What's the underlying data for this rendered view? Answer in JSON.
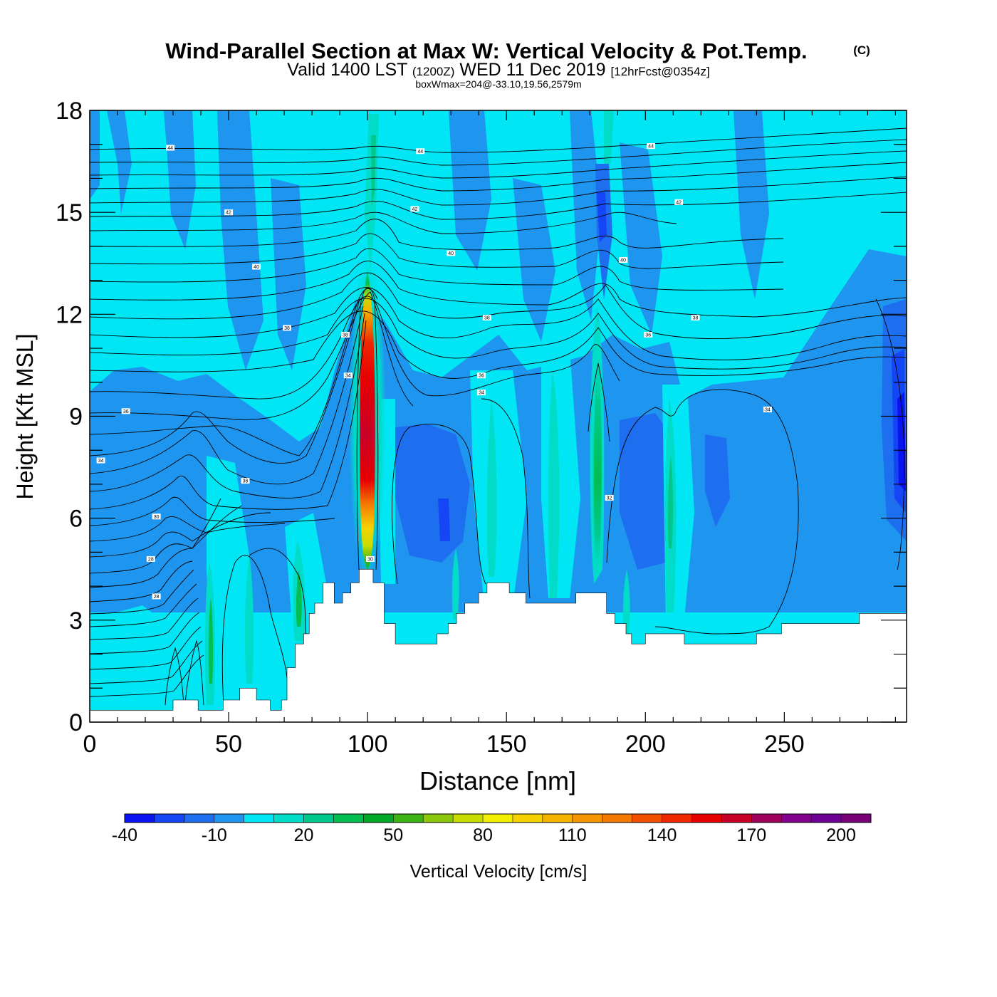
{
  "title": {
    "main": "Wind-Parallel Section at Max W: Vertical Velocity & Pot.Temp.",
    "copyright": "(C)",
    "valid_prefix": "Valid 1400 LST",
    "valid_utc": "(1200Z)",
    "valid_date": "WED 11 Dec 2019",
    "forecast": "[12hrFcst@0354z]",
    "boxwmax": "boxWmax=204@-33.10,19.56,2579m"
  },
  "chart_data": {
    "type": "heatmap",
    "xlabel": "Distance [nm]",
    "ylabel": "Height [Kft MSL]",
    "xlim": [
      0,
      294
    ],
    "ylim": [
      0,
      18
    ],
    "x_ticks": [
      "0",
      "50",
      "100",
      "150",
      "200",
      "250"
    ],
    "x_tick_values": [
      0,
      50,
      100,
      150,
      200,
      250
    ],
    "y_ticks": [
      "0",
      "3",
      "6",
      "9",
      "12",
      "15",
      "18"
    ],
    "y_tick_values": [
      0,
      3,
      6,
      9,
      12,
      15,
      18
    ],
    "colorbar": {
      "label": "Vertical Velocity [cm/s]",
      "min": -40,
      "max": 210,
      "step": 10,
      "tick_labels": [
        "-40",
        "-10",
        "20",
        "50",
        "80",
        "110",
        "140",
        "170",
        "200"
      ],
      "tick_values": [
        -40,
        -10,
        20,
        50,
        80,
        110,
        140,
        170,
        200
      ],
      "colors": [
        "#0a14f0",
        "#1446f5",
        "#1e6ef0",
        "#1e96f0",
        "#00e6f5",
        "#00dcc8",
        "#00c88c",
        "#00be50",
        "#00aa28",
        "#3cb414",
        "#8cc80a",
        "#c8dc00",
        "#f0f000",
        "#f5d200",
        "#f5b400",
        "#f59600",
        "#f57800",
        "#f55000",
        "#f02800",
        "#e60000",
        "#c80028",
        "#a0005a",
        "#82008c",
        "#6e0096",
        "#780078"
      ]
    },
    "terrain_profile_kft": [
      [
        0,
        0.35
      ],
      [
        24,
        0.35
      ],
      [
        24,
        0.35
      ],
      [
        30,
        0.35
      ],
      [
        30,
        0.65
      ],
      [
        39,
        0.65
      ],
      [
        39,
        0.35
      ],
      [
        48,
        0.35
      ],
      [
        48,
        0.65
      ],
      [
        54,
        0.65
      ],
      [
        54,
        1.0
      ],
      [
        60,
        1.0
      ],
      [
        60,
        0.65
      ],
      [
        65,
        0.65
      ],
      [
        65,
        0.35
      ],
      [
        69,
        0.35
      ],
      [
        69,
        0.65
      ],
      [
        71,
        0.65
      ],
      [
        71,
        1.6
      ],
      [
        74,
        1.6
      ],
      [
        74,
        2.3
      ],
      [
        77,
        2.3
      ],
      [
        77,
        2.6
      ],
      [
        79,
        2.6
      ],
      [
        79,
        3.2
      ],
      [
        81,
        3.2
      ],
      [
        81,
        3.5
      ],
      [
        84,
        3.5
      ],
      [
        84,
        4.1
      ],
      [
        88,
        4.1
      ],
      [
        88,
        3.5
      ],
      [
        91,
        3.5
      ],
      [
        91,
        3.8
      ],
      [
        94,
        3.8
      ],
      [
        94,
        4.1
      ],
      [
        97,
        4.1
      ],
      [
        97,
        4.5
      ],
      [
        102,
        4.5
      ],
      [
        102,
        4.1
      ],
      [
        106,
        4.1
      ],
      [
        106,
        2.9
      ],
      [
        110,
        2.9
      ],
      [
        110,
        2.3
      ],
      [
        125,
        2.3
      ],
      [
        125,
        2.6
      ],
      [
        129,
        2.6
      ],
      [
        129,
        2.9
      ],
      [
        132,
        2.9
      ],
      [
        132,
        3.2
      ],
      [
        135,
        3.2
      ],
      [
        135,
        3.5
      ],
      [
        140,
        3.5
      ],
      [
        140,
        3.8
      ],
      [
        143,
        3.8
      ],
      [
        143,
        4.1
      ],
      [
        151,
        4.1
      ],
      [
        151,
        3.8
      ],
      [
        157,
        3.8
      ],
      [
        157,
        3.5
      ],
      [
        175,
        3.5
      ],
      [
        175,
        3.8
      ],
      [
        186,
        3.8
      ],
      [
        186,
        3.2
      ],
      [
        189,
        3.2
      ],
      [
        189,
        2.9
      ],
      [
        193,
        2.9
      ],
      [
        193,
        2.6
      ],
      [
        195,
        2.6
      ],
      [
        195,
        2.3
      ],
      [
        200,
        2.3
      ],
      [
        200,
        2.6
      ],
      [
        214,
        2.6
      ],
      [
        214,
        2.3
      ],
      [
        240,
        2.3
      ],
      [
        240,
        2.6
      ],
      [
        249,
        2.6
      ],
      [
        249,
        2.9
      ],
      [
        277,
        2.9
      ],
      [
        277,
        3.2
      ],
      [
        294,
        3.2
      ]
    ],
    "theta_contour_labels": [
      {
        "text": "44",
        "x": 29,
        "y": 16.9
      },
      {
        "text": "44",
        "x": 119,
        "y": 16.8
      },
      {
        "text": "44",
        "x": 202,
        "y": 16.95
      },
      {
        "text": "42",
        "x": 50,
        "y": 15.0
      },
      {
        "text": "42",
        "x": 117,
        "y": 15.1
      },
      {
        "text": "42",
        "x": 212,
        "y": 15.3
      },
      {
        "text": "40",
        "x": 60,
        "y": 13.4
      },
      {
        "text": "40",
        "x": 130,
        "y": 13.8
      },
      {
        "text": "40",
        "x": 192,
        "y": 13.6
      },
      {
        "text": "38",
        "x": 71,
        "y": 11.6
      },
      {
        "text": "38",
        "x": 92,
        "y": 11.4
      },
      {
        "text": "38",
        "x": 143,
        "y": 11.9
      },
      {
        "text": "38",
        "x": 218,
        "y": 11.9
      },
      {
        "text": "36",
        "x": 13,
        "y": 9.15
      },
      {
        "text": "36",
        "x": 56,
        "y": 7.1
      },
      {
        "text": "36",
        "x": 141,
        "y": 10.2
      },
      {
        "text": "36",
        "x": 201,
        "y": 11.4
      },
      {
        "text": "34",
        "x": 4,
        "y": 7.7
      },
      {
        "text": "34",
        "x": 93,
        "y": 10.2
      },
      {
        "text": "34",
        "x": 141,
        "y": 9.7
      },
      {
        "text": "34",
        "x": 244,
        "y": 9.2
      },
      {
        "text": "32",
        "x": 187,
        "y": 6.6
      },
      {
        "text": "30",
        "x": 24,
        "y": 6.05
      },
      {
        "text": "30",
        "x": 101,
        "y": 4.8
      },
      {
        "text": "28",
        "x": 22,
        "y": 4.8
      },
      {
        "text": "28",
        "x": 24,
        "y": 3.7
      }
    ]
  }
}
